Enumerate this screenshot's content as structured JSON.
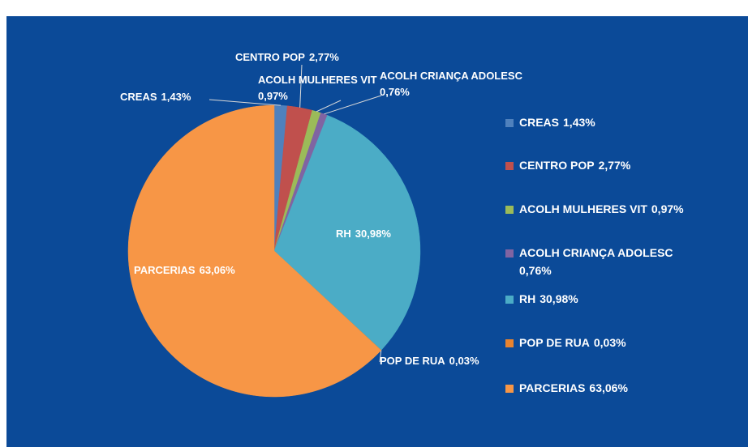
{
  "chart_data": {
    "type": "pie",
    "categories": [
      "CREAS",
      "CENTRO POP",
      "ACOLH MULHERES VIT",
      "ACOLH CRIANÇA ADOLESC",
      "RH",
      "POP DE RUA",
      "PARCERIAS"
    ],
    "values": [
      1.43,
      2.77,
      0.97,
      0.76,
      30.98,
      0.03,
      63.06
    ],
    "value_labels": [
      "1,43%",
      "2,77%",
      "0,97%",
      "0,76%",
      "30,98%",
      "0,03%",
      "63,06%"
    ],
    "colors": [
      "#4f81bd",
      "#c0504d",
      "#9bbb59",
      "#8064a2",
      "#4bacc6",
      "#e8832f",
      "#f79646"
    ],
    "legend": "right"
  }
}
